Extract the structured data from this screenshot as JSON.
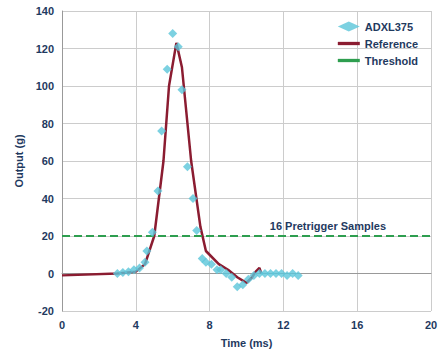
{
  "chart_data": {
    "type": "line",
    "x_label": "Time (ms)",
    "y_label": "Output (g)",
    "xlim": [
      0,
      20
    ],
    "xticks": [
      0,
      4,
      8,
      12,
      16,
      20
    ],
    "ylim": [
      -20,
      140
    ],
    "yticks": [
      -20,
      0,
      20,
      40,
      60,
      80,
      100,
      120,
      140
    ],
    "grid": true,
    "legend": "top-right",
    "annotations": [
      {
        "text": "16 Pretrigger Samples",
        "series": "Threshold"
      }
    ],
    "series": [
      {
        "name": "ADXL375",
        "type": "scatter",
        "marker": "diamond",
        "color": "#5bc6d9",
        "x": [
          3.0,
          3.3,
          3.6,
          3.9,
          4.2,
          4.5,
          4.6,
          4.9,
          5.2,
          5.4,
          5.7,
          6.0,
          6.3,
          6.5,
          6.8,
          7.1,
          7.3,
          7.6,
          7.8,
          8.1,
          8.4,
          8.6,
          8.9,
          9.2,
          9.5,
          9.8,
          10.1,
          10.4,
          10.7,
          11.0,
          11.3,
          11.6,
          11.9,
          12.2,
          12.5,
          12.8
        ],
        "values": [
          0,
          0.5,
          1,
          2,
          3,
          6,
          12,
          22,
          44,
          76,
          109,
          128,
          121,
          98,
          57,
          40,
          23,
          8,
          6,
          5,
          2,
          2,
          0,
          -2,
          -7,
          -6,
          -3,
          -1,
          0,
          0,
          0,
          0,
          0,
          -1,
          0,
          -1
        ]
      },
      {
        "name": "Reference",
        "type": "line",
        "line_style": "solid",
        "color": "#8b1c31",
        "x": [
          0,
          3,
          4,
          4.5,
          5,
          5.5,
          5.8,
          6.2,
          6.5,
          7,
          7.5,
          7.8,
          8,
          8.5,
          9,
          9.5,
          10,
          10.3,
          10.5,
          10.7,
          10.8
        ],
        "values": [
          -1,
          0,
          1,
          5,
          20,
          60,
          100,
          123,
          110,
          60,
          25,
          12,
          10,
          5,
          2,
          -2,
          -5,
          -2,
          1,
          3,
          0
        ]
      },
      {
        "name": "Threshold",
        "type": "line",
        "line_style": "dashed",
        "color": "#2e9e4f",
        "x": [
          0,
          20
        ],
        "values": [
          20,
          20
        ]
      }
    ]
  }
}
